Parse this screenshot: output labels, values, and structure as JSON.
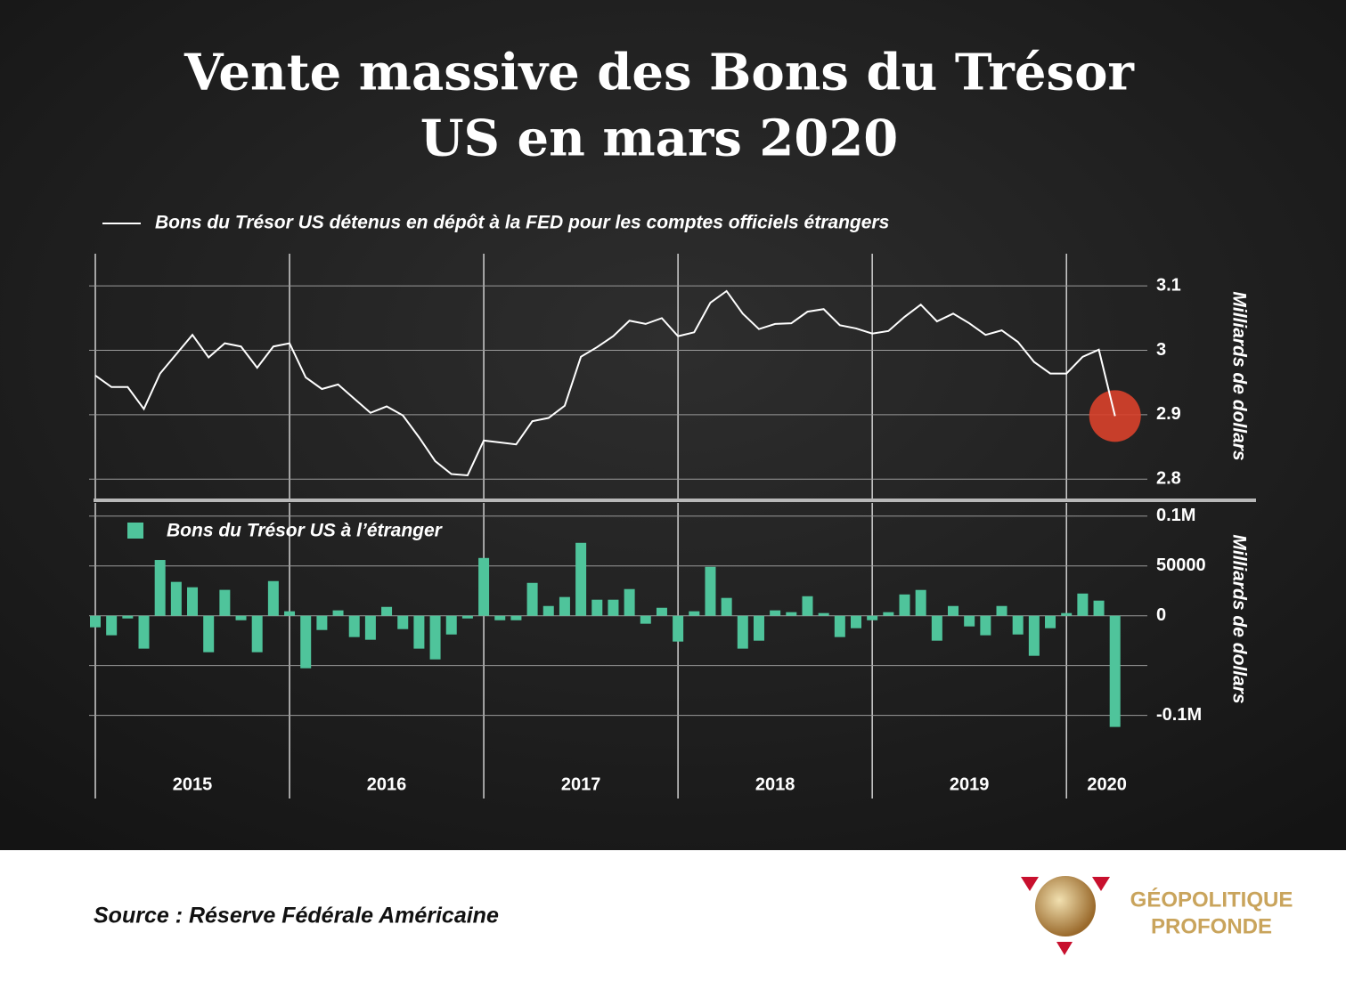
{
  "title": [
    "Vente massive des Bons du Trésor",
    "US en mars 2020"
  ],
  "source": "Source : Réserve Fédérale Américaine",
  "logo": [
    "GÉOPOLITIQUE",
    "PROFONDE"
  ],
  "chart_data": [
    {
      "type": "line",
      "series": [
        {
          "name": "Bons du Trésor US détenus en dépôt à la FED pour les comptes officiels étrangers",
          "color": "#ffffff",
          "values": [
            2.961,
            2.943,
            2.943,
            2.909,
            2.964,
            2.994,
            3.024,
            2.989,
            3.011,
            3.006,
            2.973,
            3.006,
            3.011,
            2.958,
            2.94,
            2.947,
            2.925,
            2.903,
            2.913,
            2.899,
            2.865,
            2.828,
            2.808,
            2.806,
            2.86,
            2.857,
            2.854,
            2.89,
            2.895,
            2.914,
            2.99,
            3.005,
            3.022,
            3.046,
            3.041,
            3.05,
            3.022,
            3.028,
            3.074,
            3.092,
            3.057,
            3.033,
            3.041,
            3.042,
            3.06,
            3.064,
            3.039,
            3.034,
            3.026,
            3.03,
            3.052,
            3.071,
            3.045,
            3.057,
            3.042,
            3.024,
            3.031,
            3.013,
            2.982,
            2.964,
            2.964,
            2.99,
            3.001,
            2.898
          ]
        }
      ],
      "y_label": "Milliards de dollars",
      "ylim": [
        2.77,
        3.15
      ],
      "yticks": [
        2.8,
        2.9,
        3.0,
        3.1
      ],
      "grid": true,
      "highlight_color": "#d9412b"
    },
    {
      "type": "bar",
      "series": [
        {
          "name": "Bons du Trésor US à l’étranger",
          "color": "#4fc49b",
          "values": [
            -11600,
            -19600,
            -2700,
            -33000,
            56000,
            34000,
            28600,
            -36600,
            26000,
            -4500,
            -36600,
            34800,
            4500,
            -52700,
            -14300,
            5400,
            -21400,
            -24100,
            8900,
            -13400,
            -33000,
            -43800,
            -18800,
            -2700,
            58000,
            -4500,
            -4500,
            33000,
            9800,
            18800,
            73200,
            16100,
            16100,
            26800,
            -8000,
            8000,
            -25900,
            4500,
            49100,
            17900,
            -33000,
            -25000,
            5400,
            3600,
            19600,
            2700,
            -21400,
            -12500,
            -4500,
            3600,
            21400,
            25900,
            -25000,
            9800,
            -10700,
            -19600,
            9800,
            -18800,
            -40200,
            -12500,
            2700,
            22300,
            15200,
            -111600
          ]
        }
      ],
      "y_label": "Milliards de dollars",
      "ylim": [
        -120000,
        115000
      ],
      "yticks": [
        {
          "value": -100000,
          "label": "-0.1M"
        },
        {
          "value": -50000,
          "label": null
        },
        0,
        50000,
        {
          "value": 100000,
          "label": "0.1M"
        }
      ],
      "grid": true,
      "x_labels": [
        "2015",
        "2016",
        "2017",
        "2018",
        "2019",
        "2020"
      ]
    }
  ]
}
